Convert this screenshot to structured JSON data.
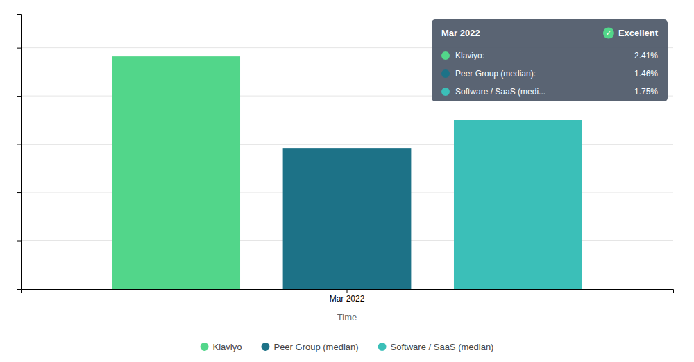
{
  "chart_data": {
    "type": "bar",
    "x_label": "Time",
    "categories": [
      "Mar 2022"
    ],
    "series": [
      {
        "name": "Klaviyo",
        "color": "#52d68a",
        "values": [
          2.41
        ]
      },
      {
        "name": "Peer Group (median)",
        "color": "#1d7287",
        "values": [
          1.46
        ]
      },
      {
        "name": "Software / SaaS (median)",
        "color": "#3bbfb8",
        "values": [
          1.75
        ]
      }
    ],
    "ylim": [
      0,
      2.85
    ],
    "yticks": [
      0.5,
      1,
      1.5,
      2,
      2.5
    ],
    "grid": true,
    "tick_labels": "x",
    "legend": "bottom",
    "annotations": [
      "Mar 2022",
      "✓",
      "Excellent",
      "Klaviyo:",
      "2.41%",
      "Peer Group (median):",
      "1.46%",
      "Software / SaaS (medi...",
      "1.75%"
    ]
  }
}
